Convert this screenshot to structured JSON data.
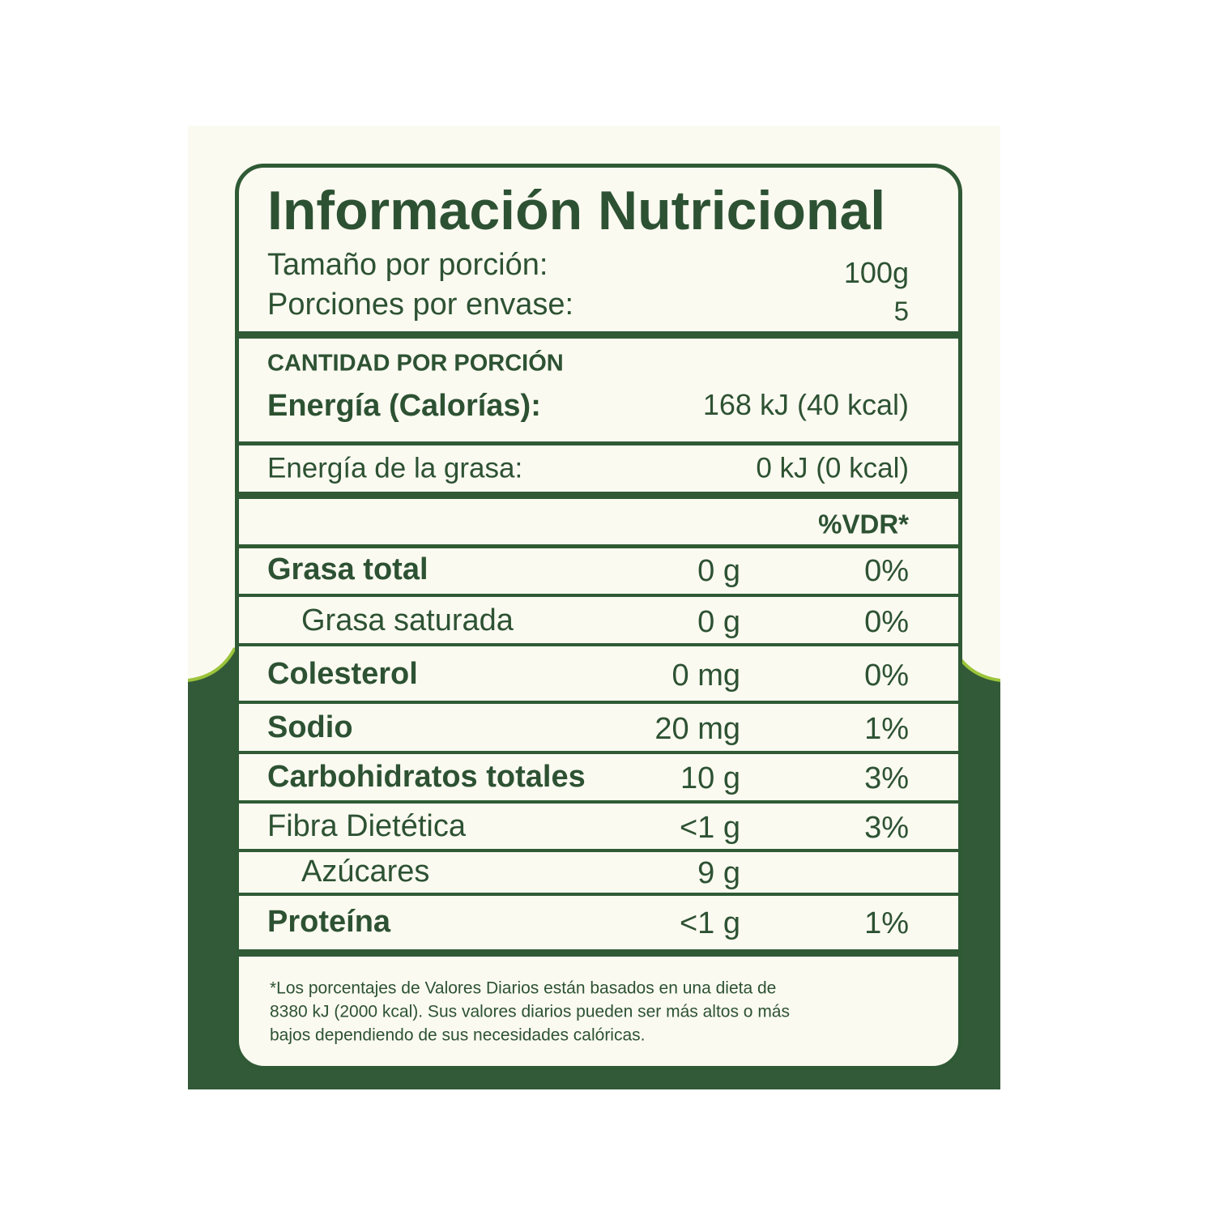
{
  "title": "Información Nutricional",
  "serving_size": {
    "label": "Tamaño por porción:",
    "value": "100g"
  },
  "servings": {
    "label": "Porciones por envase:",
    "value": "5"
  },
  "amount_header": "CANTIDAD POR PORCIÓN",
  "energy": {
    "label": "Energía (Calorías):",
    "value": "168 kJ (40 kcal)"
  },
  "fat_energy": {
    "label": "Energía de la grasa:",
    "value": "0 kJ (0 kcal)"
  },
  "dv_header": "%VDR*",
  "rows": [
    {
      "name": "Grasa total",
      "amount": "0 g",
      "dv": "0%"
    },
    {
      "name": "Grasa saturada",
      "amount": "0 g",
      "dv": "0%"
    },
    {
      "name": "Colesterol",
      "amount": "0 mg",
      "dv": "0%"
    },
    {
      "name": "Sodio",
      "amount": "20 mg",
      "dv": "1%"
    },
    {
      "name": "Carbohidratos totales",
      "amount": "10 g",
      "dv": "3%"
    },
    {
      "name": "Fibra Dietética",
      "amount": "<1 g",
      "dv": "3%"
    },
    {
      "name": "Azúcares",
      "amount": "9 g",
      "dv": null
    },
    {
      "name": "Proteína",
      "amount": "<1 g",
      "dv": "1%"
    }
  ],
  "footnote": [
    "*Los porcentajes de Valores Diarios están basados en una dieta de",
    "8380 kJ (2000 kcal). Sus valores diarios pueden ser más altos o más",
    "bajos dependiendo de sus necesidades calóricas."
  ]
}
